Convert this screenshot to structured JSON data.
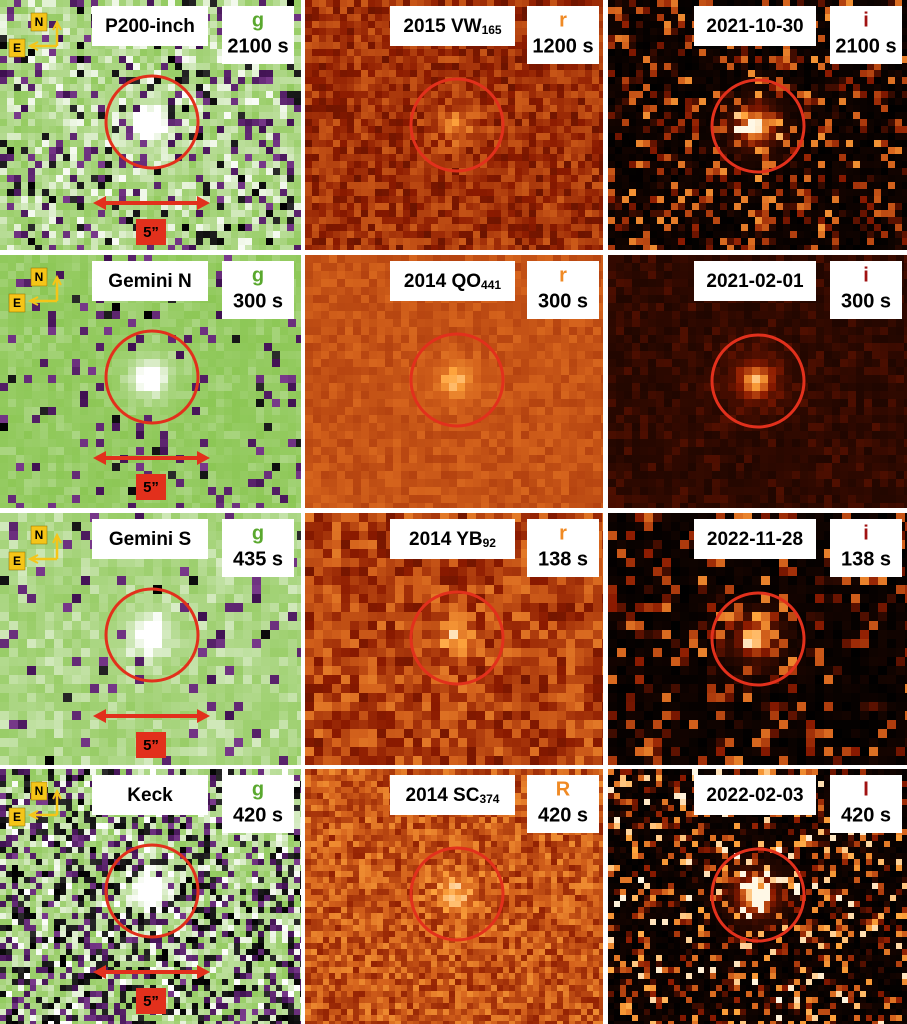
{
  "rows": [
    {
      "left": {
        "telescope": "P200-inch",
        "band": "g",
        "exposure": "2100 s",
        "north": "N",
        "east": "E",
        "scale": "5”"
      },
      "middle": {
        "designation": "2015 VW",
        "subscript": "165",
        "band": "r",
        "exposure": "1200 s"
      },
      "right": {
        "date": "2021-10-30",
        "band": "i",
        "exposure": "2100 s"
      }
    },
    {
      "left": {
        "telescope": "Gemini N",
        "band": "g",
        "exposure": "300 s",
        "north": "N",
        "east": "E",
        "scale": "5”"
      },
      "middle": {
        "designation": "2014 QO",
        "subscript": "441",
        "band": "r",
        "exposure": "300 s"
      },
      "right": {
        "date": "2021-02-01",
        "band": "i",
        "exposure": "300 s"
      }
    },
    {
      "left": {
        "telescope": "Gemini S",
        "band": "g",
        "exposure": "435 s",
        "north": "N",
        "east": "E",
        "scale": "5”"
      },
      "middle": {
        "designation": "2014 YB",
        "subscript": "92",
        "band": "r",
        "exposure": "138 s"
      },
      "right": {
        "date": "2022-11-28",
        "band": "i",
        "exposure": "138 s"
      }
    },
    {
      "left": {
        "telescope": "Keck",
        "band": "g",
        "exposure": "420 s",
        "north": "N",
        "east": "E",
        "scale": "5”"
      },
      "middle": {
        "designation": "2014 SC",
        "subscript": "374",
        "band": "R",
        "exposure": "420 s"
      },
      "right": {
        "date": "2022-02-03",
        "band": "I",
        "exposure": "420 s"
      }
    }
  ]
}
